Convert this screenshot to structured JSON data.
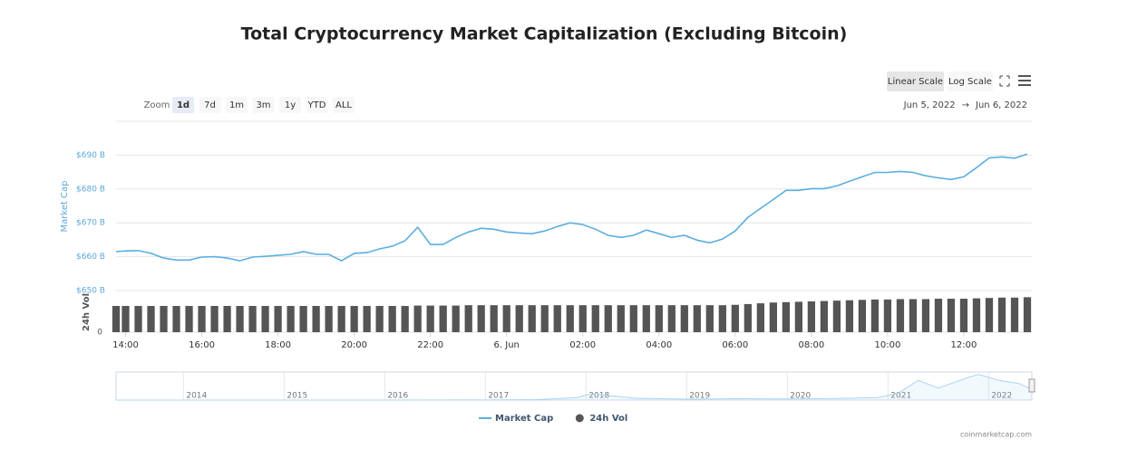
{
  "toolbar": {
    "scale_buttons": [
      "Linear Scale",
      "Log Scale"
    ],
    "active_scale": 0,
    "zoom_label": "Zoom",
    "zoom_options": [
      "1d",
      "7d",
      "1m",
      "3m",
      "1y",
      "YTD",
      "ALL"
    ],
    "zoom_selected": 0,
    "range_from": "Jun 5, 2022",
    "range_separator": "→",
    "range_to": "Jun 6, 2022"
  },
  "credit": "coinmarketcap.com",
  "chart_data": [
    {
      "type": "line",
      "title": "Total Cryptocurrency Market Capitalization (Excluding Bitcoin)",
      "y_label": "Market Cap",
      "y2_label": "24h Vol",
      "x": [
        "13:45",
        "14:00",
        "14:20",
        "14:40",
        "15:00",
        "15:20",
        "15:40",
        "16:00",
        "16:20",
        "16:40",
        "17:00",
        "17:20",
        "17:40",
        "18:00",
        "18:20",
        "18:40",
        "19:00",
        "19:20",
        "19:40",
        "20:00",
        "20:20",
        "20:40",
        "21:00",
        "21:20",
        "21:40",
        "22:00",
        "22:20",
        "22:40",
        "23:00",
        "23:20",
        "23:40",
        "00:00",
        "00:20",
        "00:40",
        "01:00",
        "01:20",
        "01:40",
        "02:00",
        "02:20",
        "02:40",
        "03:00",
        "03:20",
        "03:40",
        "04:00",
        "04:20",
        "04:40",
        "05:00",
        "05:20",
        "05:40",
        "06:00",
        "06:20",
        "06:40",
        "07:00",
        "07:20",
        "07:40",
        "08:00",
        "08:20",
        "08:40",
        "09:00",
        "09:20",
        "09:40",
        "10:00",
        "10:20",
        "10:40",
        "11:00",
        "11:20",
        "11:40",
        "12:00",
        "12:20",
        "12:40",
        "13:00",
        "13:20",
        "13:40"
      ],
      "xlim": [
        "13:45",
        "13:40"
      ],
      "xticks": [
        "14:00",
        "16:00",
        "18:00",
        "20:00",
        "22:00",
        {
          "value": "00:00",
          "label": "6. Jun"
        },
        "02:00",
        "04:00",
        "06:00",
        "08:00",
        "10:00",
        "12:00"
      ],
      "ylim": [
        650,
        700
      ],
      "yticks": [
        {
          "value": 650,
          "label": "$650 B"
        },
        {
          "value": 660,
          "label": "$660 B"
        },
        {
          "value": 670,
          "label": "$670 B"
        },
        {
          "value": 680,
          "label": "$680 B"
        },
        {
          "value": 690,
          "label": "$690 B"
        }
      ],
      "y2lim": [
        0,
        100
      ],
      "y2ticks": [
        0
      ],
      "grid": true,
      "series": [
        {
          "name": "Market Cap",
          "type": "line",
          "color": "#5aaee0",
          "values": [
            661.5,
            661.7,
            661.8,
            661.0,
            659.6,
            659.0,
            659.0,
            659.9,
            660.0,
            659.6,
            658.8,
            659.9,
            660.1,
            660.4,
            660.7,
            661.5,
            660.7,
            660.7,
            658.8,
            661.0,
            661.2,
            662.3,
            663.1,
            664.7,
            668.7,
            663.6,
            663.6,
            665.7,
            667.3,
            668.4,
            668.1,
            667.3,
            667.0,
            666.8,
            667.6,
            668.9,
            670.0,
            669.5,
            668.1,
            666.3,
            665.7,
            666.3,
            667.9,
            666.8,
            665.7,
            666.3,
            664.9,
            664.1,
            665.2,
            667.6,
            671.6,
            674.3,
            676.9,
            679.6,
            679.6,
            680.1,
            680.1,
            680.9,
            682.3,
            683.6,
            684.9,
            684.9,
            685.2,
            684.9,
            683.9,
            683.3,
            682.8,
            683.6,
            686.3,
            689.2,
            689.5,
            689.1,
            690.3
          ]
        },
        {
          "name": "24h Vol",
          "type": "bar",
          "axis": "y2",
          "color": "#555555",
          "values": [
            69,
            69,
            69,
            69,
            69,
            69,
            69,
            69,
            69,
            69,
            69,
            69,
            69,
            69,
            69,
            69,
            69,
            69,
            69,
            69,
            69,
            69,
            69,
            69,
            70,
            70,
            70,
            70,
            71,
            71,
            71,
            71,
            71,
            71,
            71,
            71,
            71,
            71,
            71,
            71,
            71,
            71,
            71,
            71,
            71,
            71,
            71,
            71,
            71,
            72,
            74,
            76,
            78,
            79,
            80,
            81,
            82,
            83,
            84,
            85,
            86,
            86,
            87,
            87,
            87,
            88,
            88,
            88,
            89,
            90,
            91,
            91,
            92
          ]
        }
      ]
    },
    {
      "type": "area",
      "color": "#a9d4f0",
      "x": [
        2013.33,
        2014,
        2015,
        2016,
        2017,
        2017.5,
        2017.9,
        2018.05,
        2018.5,
        2019,
        2019.5,
        2020,
        2020.5,
        2020.9,
        2021.1,
        2021.3,
        2021.5,
        2021.8,
        2021.9,
        2022.1,
        2022.3,
        2022.43
      ],
      "values": [
        0,
        1,
        1,
        2,
        5,
        30,
        150,
        400,
        120,
        60,
        90,
        70,
        110,
        160,
        450,
        1300,
        800,
        1500,
        1700,
        1300,
        1100,
        700
      ],
      "xlim": [
        2013.33,
        2022.43
      ],
      "ylim": [
        0,
        1800
      ],
      "xticks": [
        2014,
        2015,
        2016,
        2017,
        2018,
        2019,
        2020,
        2021,
        2022
      ]
    }
  ]
}
